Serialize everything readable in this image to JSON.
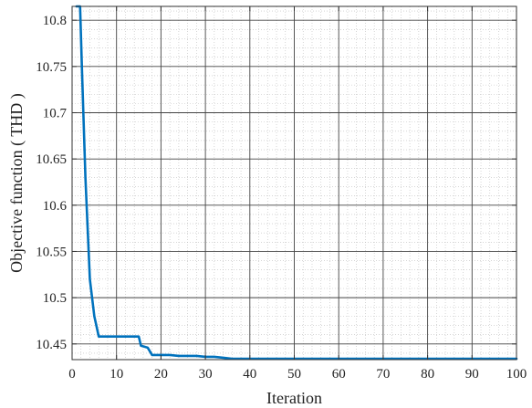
{
  "chart_data": {
    "type": "line",
    "title": "",
    "xlabel": "Iteration",
    "ylabel": "Objective function ( THD )",
    "xlim": [
      0,
      100
    ],
    "ylim": [
      10.433,
      10.815
    ],
    "xticks": [
      0,
      10,
      20,
      30,
      40,
      50,
      60,
      70,
      80,
      90,
      100
    ],
    "yticks": [
      10.45,
      10.5,
      10.55,
      10.6,
      10.65,
      10.7,
      10.75,
      10.8
    ],
    "ytick_labels": [
      "10.45",
      "10.5",
      "10.55",
      "10.6",
      "10.65",
      "10.7",
      "10.75",
      "10.8"
    ],
    "grid": true,
    "minor_grid": true,
    "legend": "none",
    "line_color": "#0072BD",
    "series": [
      {
        "x": [
          1,
          1.8,
          2.2,
          3,
          4,
          5,
          6,
          7,
          10,
          12,
          15,
          15.5,
          17,
          18,
          19,
          20,
          22,
          24,
          26,
          28,
          30,
          32,
          34,
          36,
          40,
          50,
          60,
          70,
          80,
          90,
          100
        ],
        "y": [
          10.815,
          10.815,
          10.75,
          10.63,
          10.52,
          10.48,
          10.458,
          10.458,
          10.458,
          10.458,
          10.458,
          10.448,
          10.446,
          10.438,
          10.438,
          10.438,
          10.438,
          10.437,
          10.437,
          10.437,
          10.436,
          10.436,
          10.435,
          10.434,
          10.434,
          10.434,
          10.434,
          10.434,
          10.434,
          10.434,
          10.434
        ]
      }
    ]
  }
}
